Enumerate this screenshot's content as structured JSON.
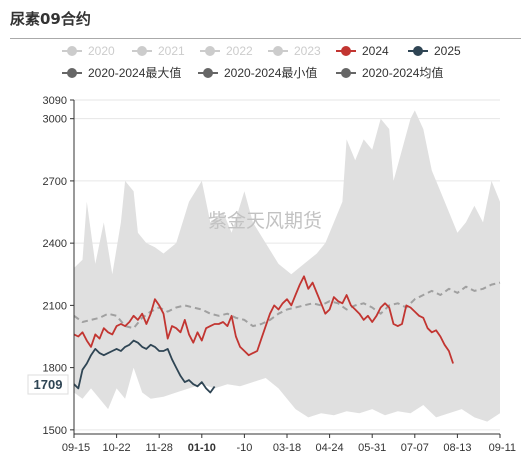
{
  "title": "尿素09合约",
  "watermark": "紫金天风期货",
  "colors": {
    "band": "#e0e0e0",
    "s2024": "#c23531",
    "s2025": "#2f4554",
    "avg": "#a0a0a0",
    "inactive": "#cccccc",
    "legend_gray": "#666666"
  },
  "legend": [
    {
      "name": "2020",
      "color": "#cccccc",
      "text_color": "#cccccc",
      "active": false
    },
    {
      "name": "2021",
      "color": "#cccccc",
      "text_color": "#cccccc",
      "active": false
    },
    {
      "name": "2022",
      "color": "#cccccc",
      "text_color": "#cccccc",
      "active": false
    },
    {
      "name": "2023",
      "color": "#cccccc",
      "text_color": "#cccccc",
      "active": false
    },
    {
      "name": "2024",
      "color": "#c23531",
      "text_color": "#333333",
      "active": true
    },
    {
      "name": "2025",
      "color": "#2f4554",
      "text_color": "#333333",
      "active": true
    },
    {
      "name": "2020-2024最大值",
      "color": "#666666",
      "text_color": "#333333",
      "active": true
    },
    {
      "name": "2020-2024最小值",
      "color": "#666666",
      "text_color": "#333333",
      "active": true
    },
    {
      "name": "2020-2024均值",
      "color": "#666666",
      "text_color": "#333333",
      "active": true
    }
  ],
  "chart_data": {
    "type": "line",
    "x_ticks": [
      "09-15",
      "10-22",
      "11-28",
      "01-10",
      "-10",
      "03-18",
      "04-24",
      "05-31",
      "07-07",
      "08-13",
      "09-11"
    ],
    "highlighted_x_tick": "01-10",
    "y_ticks": [
      3090,
      3000,
      2700,
      2400,
      2100,
      1800,
      1500
    ],
    "ylim": [
      1480,
      3090
    ],
    "last_value_label": "1709",
    "max_band": [
      [
        0,
        2280
      ],
      [
        2,
        2320
      ],
      [
        3,
        2600
      ],
      [
        5,
        2300
      ],
      [
        7,
        2500
      ],
      [
        9,
        2250
      ],
      [
        11,
        2500
      ],
      [
        12,
        2700
      ],
      [
        14,
        2650
      ],
      [
        15,
        2450
      ],
      [
        17,
        2400
      ],
      [
        19,
        2380
      ],
      [
        21,
        2350
      ],
      [
        24,
        2400
      ],
      [
        27,
        2600
      ],
      [
        30,
        2700
      ],
      [
        32,
        2500
      ],
      [
        35,
        2550
      ],
      [
        37,
        2450
      ],
      [
        40,
        2650
      ],
      [
        42,
        2500
      ],
      [
        45,
        2400
      ],
      [
        48,
        2300
      ],
      [
        51,
        2250
      ],
      [
        54,
        2300
      ],
      [
        57,
        2350
      ],
      [
        59,
        2400
      ],
      [
        61,
        2500
      ],
      [
        63,
        2600
      ],
      [
        64,
        2900
      ],
      [
        66,
        2800
      ],
      [
        68,
        2900
      ],
      [
        70,
        2850
      ],
      [
        72,
        3000
      ],
      [
        74,
        2950
      ],
      [
        75,
        2700
      ],
      [
        77,
        2850
      ],
      [
        79,
        3000
      ],
      [
        80,
        3040
      ],
      [
        82,
        2950
      ],
      [
        84,
        2750
      ],
      [
        86,
        2650
      ],
      [
        88,
        2550
      ],
      [
        90,
        2450
      ],
      [
        92,
        2500
      ],
      [
        94,
        2580
      ],
      [
        96,
        2500
      ],
      [
        98,
        2700
      ],
      [
        100,
        2600
      ]
    ],
    "min_band": [
      [
        0,
        1680
      ],
      [
        2,
        1650
      ],
      [
        4,
        1700
      ],
      [
        6,
        1650
      ],
      [
        8,
        1600
      ],
      [
        10,
        1700
      ],
      [
        12,
        1650
      ],
      [
        14,
        1800
      ],
      [
        16,
        1680
      ],
      [
        18,
        1650
      ],
      [
        21,
        1660
      ],
      [
        24,
        1680
      ],
      [
        27,
        1700
      ],
      [
        30,
        1720
      ],
      [
        33,
        1700
      ],
      [
        36,
        1720
      ],
      [
        39,
        1710
      ],
      [
        42,
        1730
      ],
      [
        45,
        1750
      ],
      [
        48,
        1700
      ],
      [
        50,
        1650
      ],
      [
        52,
        1600
      ],
      [
        55,
        1560
      ],
      [
        58,
        1580
      ],
      [
        61,
        1570
      ],
      [
        64,
        1590
      ],
      [
        67,
        1580
      ],
      [
        70,
        1600
      ],
      [
        73,
        1570
      ],
      [
        76,
        1590
      ],
      [
        79,
        1580
      ],
      [
        82,
        1620
      ],
      [
        85,
        1560
      ],
      [
        88,
        1580
      ],
      [
        91,
        1600
      ],
      [
        94,
        1560
      ],
      [
        97,
        1540
      ],
      [
        100,
        1580
      ]
    ],
    "series": [
      {
        "name": "2024",
        "color": "#c23531",
        "dashed": false,
        "points": [
          [
            0,
            1960
          ],
          [
            1,
            1950
          ],
          [
            2,
            1970
          ],
          [
            3,
            1930
          ],
          [
            4,
            1900
          ],
          [
            5,
            1960
          ],
          [
            6,
            1940
          ],
          [
            7,
            1990
          ],
          [
            8,
            1970
          ],
          [
            9,
            1960
          ],
          [
            10,
            2000
          ],
          [
            11,
            2010
          ],
          [
            12,
            2000
          ],
          [
            13,
            2020
          ],
          [
            14,
            2050
          ],
          [
            15,
            2030
          ],
          [
            16,
            2060
          ],
          [
            17,
            2010
          ],
          [
            18,
            2060
          ],
          [
            19,
            2130
          ],
          [
            20,
            2100
          ],
          [
            21,
            2060
          ],
          [
            22,
            1940
          ],
          [
            23,
            2000
          ],
          [
            24,
            1990
          ],
          [
            25,
            1970
          ],
          [
            26,
            2030
          ],
          [
            27,
            1960
          ],
          [
            28,
            1920
          ],
          [
            29,
            1970
          ],
          [
            30,
            1930
          ],
          [
            31,
            1990
          ],
          [
            32,
            2000
          ],
          [
            33,
            2010
          ],
          [
            34,
            2010
          ],
          [
            35,
            2020
          ],
          [
            36,
            2000
          ],
          [
            37,
            2050
          ],
          [
            38,
            1950
          ],
          [
            39,
            1900
          ],
          [
            40,
            1880
          ],
          [
            41,
            1860
          ],
          [
            42,
            1870
          ],
          [
            43,
            1880
          ],
          [
            44,
            1940
          ],
          [
            45,
            2000
          ],
          [
            46,
            2060
          ],
          [
            47,
            2100
          ],
          [
            48,
            2080
          ],
          [
            49,
            2110
          ],
          [
            50,
            2130
          ],
          [
            51,
            2100
          ],
          [
            52,
            2150
          ],
          [
            53,
            2200
          ],
          [
            54,
            2240
          ],
          [
            55,
            2180
          ],
          [
            56,
            2210
          ],
          [
            57,
            2160
          ],
          [
            58,
            2110
          ],
          [
            59,
            2060
          ],
          [
            60,
            2080
          ],
          [
            61,
            2140
          ],
          [
            62,
            2120
          ],
          [
            63,
            2110
          ],
          [
            64,
            2150
          ],
          [
            65,
            2100
          ],
          [
            66,
            2080
          ],
          [
            67,
            2060
          ],
          [
            68,
            2030
          ],
          [
            69,
            2050
          ],
          [
            70,
            2020
          ],
          [
            71,
            2050
          ],
          [
            72,
            2090
          ],
          [
            73,
            2110
          ],
          [
            74,
            2090
          ],
          [
            75,
            2010
          ],
          [
            76,
            2000
          ],
          [
            77,
            2010
          ],
          [
            78,
            2100
          ],
          [
            79,
            2090
          ],
          [
            80,
            2070
          ],
          [
            81,
            2050
          ],
          [
            82,
            2040
          ],
          [
            83,
            1990
          ],
          [
            84,
            1970
          ],
          [
            85,
            1980
          ],
          [
            86,
            1950
          ],
          [
            87,
            1910
          ],
          [
            88,
            1880
          ],
          [
            89,
            1820
          ]
        ]
      },
      {
        "name": "2025",
        "color": "#2f4554",
        "dashed": false,
        "points": [
          [
            0,
            1720
          ],
          [
            1,
            1700
          ],
          [
            2,
            1790
          ],
          [
            3,
            1820
          ],
          [
            4,
            1860
          ],
          [
            5,
            1890
          ],
          [
            6,
            1870
          ],
          [
            7,
            1860
          ],
          [
            8,
            1870
          ],
          [
            9,
            1880
          ],
          [
            10,
            1890
          ],
          [
            11,
            1880
          ],
          [
            12,
            1900
          ],
          [
            13,
            1910
          ],
          [
            14,
            1930
          ],
          [
            15,
            1920
          ],
          [
            16,
            1900
          ],
          [
            17,
            1890
          ],
          [
            18,
            1910
          ],
          [
            19,
            1900
          ],
          [
            20,
            1880
          ],
          [
            21,
            1880
          ],
          [
            22,
            1890
          ],
          [
            23,
            1840
          ],
          [
            24,
            1800
          ],
          [
            25,
            1760
          ],
          [
            26,
            1730
          ],
          [
            27,
            1740
          ],
          [
            28,
            1720
          ],
          [
            29,
            1710
          ],
          [
            30,
            1730
          ],
          [
            31,
            1700
          ],
          [
            32,
            1680
          ],
          [
            33,
            1709
          ]
        ]
      },
      {
        "name": "2020-2024均值",
        "color": "#a0a0a0",
        "dashed": true,
        "points": [
          [
            0,
            2050
          ],
          [
            2,
            2020
          ],
          [
            4,
            2030
          ],
          [
            6,
            2040
          ],
          [
            8,
            2060
          ],
          [
            10,
            2050
          ],
          [
            12,
            2000
          ],
          [
            14,
            1990
          ],
          [
            16,
            2040
          ],
          [
            18,
            2070
          ],
          [
            20,
            2090
          ],
          [
            22,
            2070
          ],
          [
            24,
            2090
          ],
          [
            26,
            2100
          ],
          [
            28,
            2090
          ],
          [
            30,
            2080
          ],
          [
            32,
            2060
          ],
          [
            34,
            2050
          ],
          [
            36,
            2060
          ],
          [
            38,
            2040
          ],
          [
            40,
            2030
          ],
          [
            42,
            2000
          ],
          [
            44,
            2010
          ],
          [
            46,
            2030
          ],
          [
            48,
            2060
          ],
          [
            50,
            2080
          ],
          [
            52,
            2090
          ],
          [
            54,
            2100
          ],
          [
            56,
            2110
          ],
          [
            58,
            2100
          ],
          [
            60,
            2120
          ],
          [
            62,
            2110
          ],
          [
            64,
            2080
          ],
          [
            66,
            2100
          ],
          [
            68,
            2110
          ],
          [
            70,
            2090
          ],
          [
            72,
            2060
          ],
          [
            74,
            2100
          ],
          [
            76,
            2110
          ],
          [
            78,
            2090
          ],
          [
            80,
            2130
          ],
          [
            82,
            2150
          ],
          [
            84,
            2170
          ],
          [
            86,
            2150
          ],
          [
            88,
            2180
          ],
          [
            90,
            2160
          ],
          [
            92,
            2190
          ],
          [
            94,
            2170
          ],
          [
            96,
            2180
          ],
          [
            98,
            2200
          ],
          [
            100,
            2210
          ]
        ]
      }
    ]
  }
}
